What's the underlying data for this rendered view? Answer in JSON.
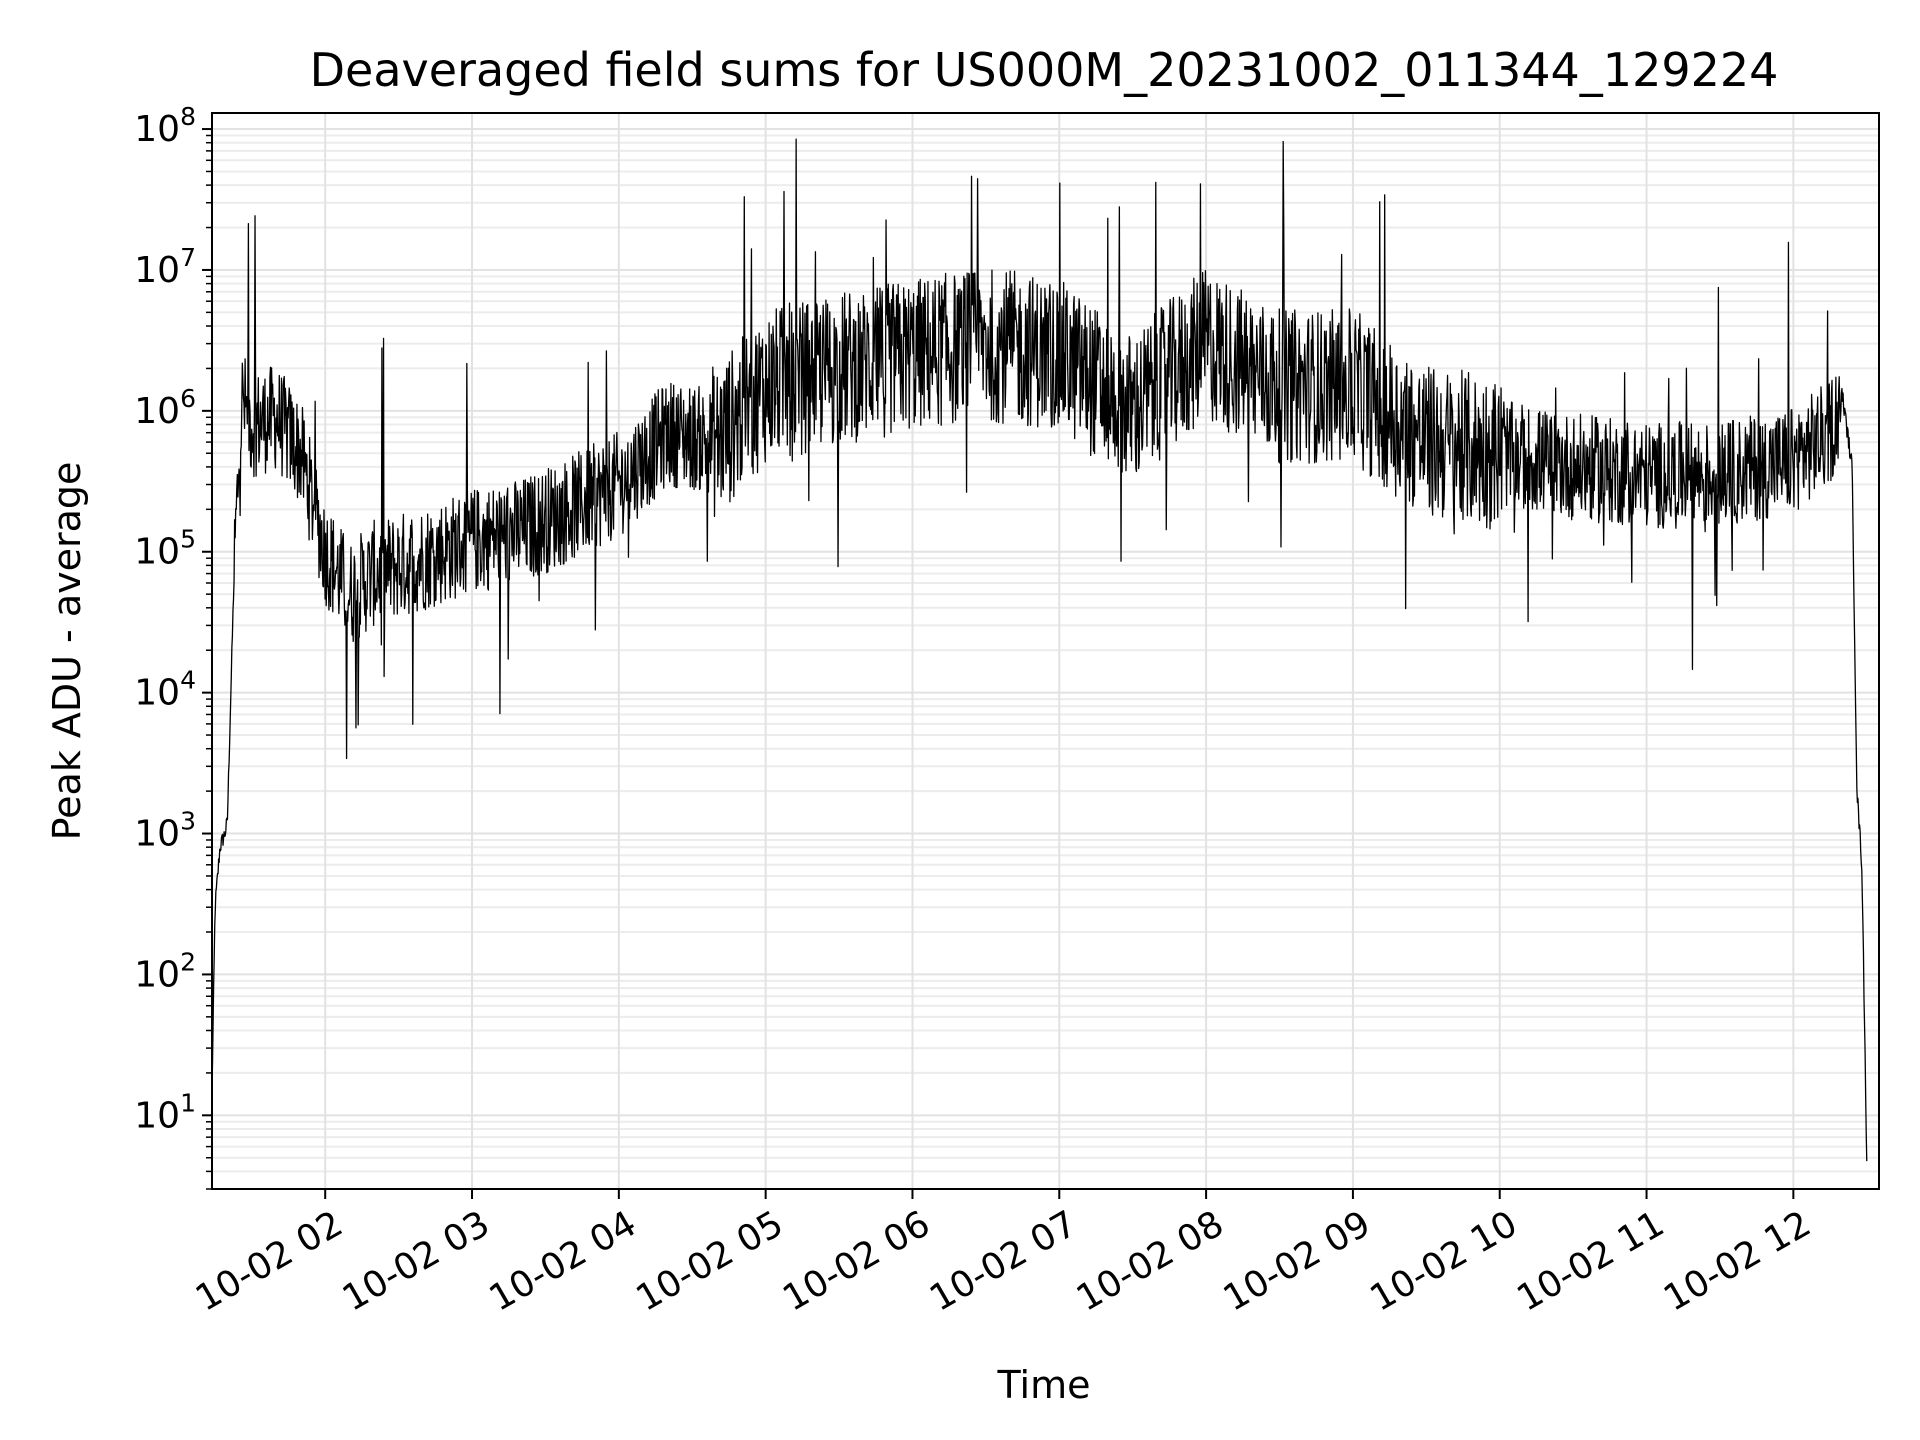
{
  "chart_data": {
    "type": "line",
    "title": "Deaveraged field sums for US000M_20231002_011344_129224",
    "xlabel": "Time",
    "ylabel": "Peak ADU - average",
    "yscale": "log",
    "ylim": [
      3,
      130000000
    ],
    "xlim": [
      "2023-10-02 01:13:44",
      "2023-10-02 12:35:00"
    ],
    "grid": true,
    "x_ticks": [
      "10-02 02",
      "10-02 03",
      "10-02 04",
      "10-02 05",
      "10-02 06",
      "10-02 07",
      "10-02 08",
      "10-02 09",
      "10-02 10",
      "10-02 11",
      "10-02 12"
    ],
    "y_ticks": [
      {
        "value": 10,
        "base": "10",
        "exp": "1"
      },
      {
        "value": 100,
        "base": "10",
        "exp": "2"
      },
      {
        "value": 1000,
        "base": "10",
        "exp": "3"
      },
      {
        "value": 10000,
        "base": "10",
        "exp": "4"
      },
      {
        "value": 100000,
        "base": "10",
        "exp": "5"
      },
      {
        "value": 1000000,
        "base": "10",
        "exp": "6"
      },
      {
        "value": 10000000,
        "base": "10",
        "exp": "7"
      },
      {
        "value": 100000000,
        "base": "10",
        "exp": "8"
      }
    ],
    "line_color": "#000000",
    "series": [
      {
        "x": [
          "2023-10-02 01:13:44",
          "2023-10-02 01:15:00",
          "2023-10-02 01:17:00",
          "2023-10-02 01:19:00",
          "2023-10-02 01:20:00",
          "2023-10-02 01:23:00",
          "2023-10-02 01:26:00",
          "2023-10-02 01:30:00",
          "2023-10-02 01:40:00",
          "2023-10-02 01:50:00",
          "2023-10-02 02:00:00",
          "2023-10-02 02:10:00",
          "2023-10-02 02:20:00",
          "2023-10-02 02:40:00",
          "2023-10-02 03:00:00",
          "2023-10-02 03:20:00",
          "2023-10-02 03:40:00",
          "2023-10-02 04:00:00",
          "2023-10-02 04:20:00",
          "2023-10-02 04:40:00",
          "2023-10-02 05:00:00",
          "2023-10-02 05:30:00",
          "2023-10-02 06:00:00",
          "2023-10-02 06:30:00",
          "2023-10-02 07:00:00",
          "2023-10-02 07:30:00",
          "2023-10-02 08:00:00",
          "2023-10-02 08:30:00",
          "2023-10-02 09:00:00",
          "2023-10-02 09:30:00",
          "2023-10-02 10:00:00",
          "2023-10-02 10:30:00",
          "2023-10-02 11:00:00",
          "2023-10-02 11:30:00",
          "2023-10-02 12:00:00",
          "2023-10-02 12:15:00",
          "2023-10-02 12:20:00",
          "2023-10-02 12:24:00",
          "2023-10-02 12:26:00",
          "2023-10-02 12:28:00",
          "2023-10-02 12:30:00"
        ],
        "y": [
          15,
          300,
          800,
          1000,
          1200,
          100000,
          1200000,
          800000,
          900000,
          500000,
          100000,
          50000,
          70000,
          90000,
          120000,
          140000,
          200000,
          300000,
          700000,
          600000,
          1500000,
          2000000,
          2500000,
          3000000,
          2500000,
          1000000,
          3000000,
          1500000,
          1500000,
          600000,
          500000,
          400000,
          350000,
          350000,
          450000,
          700000,
          1300000,
          400000,
          2000,
          600,
          5
        ]
      }
    ]
  }
}
